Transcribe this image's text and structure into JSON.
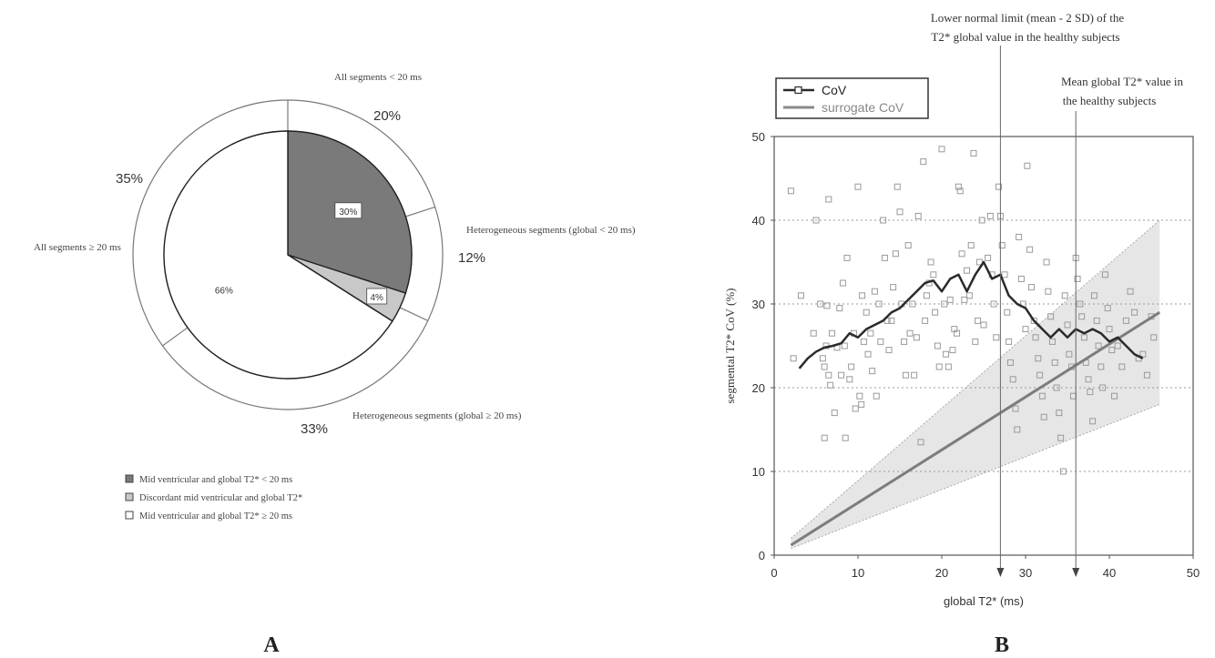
{
  "panel_a": {
    "panel_label": "A",
    "outer_ring_labels": [
      {
        "text": "All segments < 20 ms",
        "percent": "20%"
      },
      {
        "text": "Heterogeneous segments (global < 20 ms)",
        "percent": "12%"
      },
      {
        "text": "Heterogeneous segments (global ≥ 20 ms)",
        "percent": "33%"
      },
      {
        "text": "All segments ≥ 20 ms",
        "percent": "35%"
      }
    ],
    "legend": [
      {
        "label": "Mid ventricular and global T2* < 20 ms",
        "color": "#7a7a7a"
      },
      {
        "label": "Discordant mid ventricular and global T2*",
        "color": "#c8c8c8"
      },
      {
        "label": "Mid ventricular and global T2*  ≥ 20 ms",
        "color": "#ffffff"
      }
    ]
  },
  "panel_b": {
    "panel_label": "B",
    "annotation_lower_line1": "Lower normal limit (mean - 2 SD) of the",
    "annotation_lower_line2": "T2* global value in the healthy subjects",
    "annotation_mean_line1": "Mean global T2* value in",
    "annotation_mean_line2": "the healthy subjects",
    "legend_cov": "CoV",
    "legend_surrogate": "surrogate CoV",
    "xlabel": "global T2* (ms)",
    "ylabel": "segmental T2* CoV (%)"
  },
  "chart_data": [
    {
      "type": "pie",
      "title": "",
      "slices": [
        {
          "label": "Mid ventricular and global T2* < 20 ms",
          "value": 30,
          "value_label": "30%",
          "color": "#7a7a7a"
        },
        {
          "label": "Discordant mid ventricular and global T2*",
          "value": 4,
          "value_label": "4%",
          "color": "#c8c8c8"
        },
        {
          "label": "Mid ventricular and global T2*  ≥ 20 ms",
          "value": 66,
          "value_label": "66%",
          "color": "#ffffff"
        }
      ],
      "outer_ring": [
        {
          "label": "All segments < 20 ms",
          "value": 20,
          "value_label": "20%"
        },
        {
          "label": "Heterogeneous segments (global < 20 ms)",
          "value": 12,
          "value_label": "12%"
        },
        {
          "label": "Heterogeneous segments (global ≥ 20 ms)",
          "value": 33,
          "value_label": "33%"
        },
        {
          "label": "All segments ≥ 20 ms",
          "value": 35,
          "value_label": "35%"
        }
      ]
    },
    {
      "type": "scatter",
      "title": "",
      "xlabel": "global T2* (ms)",
      "ylabel": "segmental T2* CoV (%)",
      "xlim": [
        0,
        50
      ],
      "ylim": [
        0,
        50
      ],
      "xticks": [
        0,
        10,
        20,
        30,
        40,
        50
      ],
      "yticks": [
        0,
        10,
        20,
        30,
        40,
        50
      ],
      "grid": "horizontal-dotted",
      "legend_position": "top-left",
      "vertical_markers": [
        27,
        36
      ],
      "series": [
        {
          "name": "CoV",
          "kind": "line",
          "color": "#2a2a2a",
          "x": [
            3,
            4,
            5,
            6,
            7,
            8,
            9,
            10,
            11,
            12,
            13,
            14,
            15,
            16,
            17,
            18,
            19,
            20,
            21,
            22,
            23,
            24,
            25,
            26,
            27,
            28,
            29,
            30,
            31,
            32,
            33,
            34,
            35,
            36,
            37,
            38,
            39,
            40,
            41,
            42,
            43,
            44
          ],
          "y": [
            22.3,
            23.5,
            24.3,
            24.8,
            25,
            25.3,
            26.5,
            26,
            27,
            27.5,
            28,
            29,
            29.5,
            30.5,
            31.5,
            32.5,
            32.8,
            31.5,
            33,
            33.5,
            31.5,
            33.5,
            35,
            33,
            33.5,
            31,
            30,
            29.5,
            28,
            27,
            26,
            27,
            26,
            27,
            26.5,
            27,
            26.5,
            25.5,
            26,
            25,
            24,
            23.5
          ]
        },
        {
          "name": "surrogate CoV",
          "kind": "line",
          "color": "#7d7d7d",
          "x": [
            2,
            46
          ],
          "y": [
            1.2,
            29
          ]
        },
        {
          "name": "surrogate CoV band",
          "kind": "area",
          "color": "#e6e6e6",
          "x": [
            2,
            46
          ],
          "upper": [
            2,
            40
          ],
          "lower": [
            0.8,
            18
          ]
        },
        {
          "name": "segments",
          "kind": "points",
          "color": "#9a9a9a",
          "points": [
            [
              2,
              43.5
            ],
            [
              2.3,
              23.5
            ],
            [
              3.2,
              31
            ],
            [
              4.7,
              26.5
            ],
            [
              5,
              40
            ],
            [
              5.5,
              30
            ],
            [
              5.8,
              23.5
            ],
            [
              6,
              22.5
            ],
            [
              6.2,
              25
            ],
            [
              6.5,
              42.5
            ],
            [
              6.3,
              29.8
            ],
            [
              6.5,
              21.5
            ],
            [
              6.7,
              20.3
            ],
            [
              6.9,
              26.5
            ],
            [
              7.2,
              17
            ],
            [
              7.5,
              24.8
            ],
            [
              7.8,
              29.5
            ],
            [
              8,
              21.5
            ],
            [
              8.2,
              32.5
            ],
            [
              8.4,
              25
            ],
            [
              8.7,
              35.5
            ],
            [
              9,
              21
            ],
            [
              8.5,
              14
            ],
            [
              6,
              14
            ],
            [
              9.2,
              22.5
            ],
            [
              9.5,
              26.5
            ],
            [
              9.7,
              17.5
            ],
            [
              10,
              44
            ],
            [
              10.2,
              19
            ],
            [
              10.4,
              18
            ],
            [
              10.5,
              31
            ],
            [
              10.7,
              25.5
            ],
            [
              11,
              29
            ],
            [
              11.2,
              24
            ],
            [
              11.5,
              26.5
            ],
            [
              11.7,
              22
            ],
            [
              12,
              31.5
            ],
            [
              12.2,
              19
            ],
            [
              12.5,
              30
            ],
            [
              12.7,
              25.5
            ],
            [
              13,
              40
            ],
            [
              13.2,
              35.5
            ],
            [
              13.5,
              28
            ],
            [
              13.7,
              24.5
            ],
            [
              14,
              28
            ],
            [
              14.2,
              32
            ],
            [
              14.5,
              36
            ],
            [
              14.7,
              44
            ],
            [
              15,
              41
            ],
            [
              15.2,
              30
            ],
            [
              15.5,
              25.5
            ],
            [
              15.7,
              21.5
            ],
            [
              16,
              37
            ],
            [
              16.2,
              26.5
            ],
            [
              16.5,
              30
            ],
            [
              16.7,
              21.5
            ],
            [
              17,
              26
            ],
            [
              17.2,
              40.5
            ],
            [
              17.5,
              13.5
            ],
            [
              17.8,
              47
            ],
            [
              18,
              28
            ],
            [
              18.2,
              31
            ],
            [
              18.5,
              32.5
            ],
            [
              18.7,
              35
            ],
            [
              19,
              33.5
            ],
            [
              19.2,
              29
            ],
            [
              19.5,
              25
            ],
            [
              19.7,
              22.5
            ],
            [
              20,
              48.5
            ],
            [
              20.3,
              30
            ],
            [
              20.5,
              24
            ],
            [
              20.8,
              22.5
            ],
            [
              21,
              30.5
            ],
            [
              21.3,
              24.5
            ],
            [
              21.5,
              27
            ],
            [
              21.8,
              26.5
            ],
            [
              22,
              44
            ],
            [
              22.2,
              43.5
            ],
            [
              22.4,
              36
            ],
            [
              22.7,
              30.5
            ],
            [
              23,
              34
            ],
            [
              23.3,
              31
            ],
            [
              23.5,
              37
            ],
            [
              23.8,
              48
            ],
            [
              24,
              25.5
            ],
            [
              24.3,
              28
            ],
            [
              24.5,
              35
            ],
            [
              24.8,
              40
            ],
            [
              25,
              27.5
            ],
            [
              25.5,
              35.5
            ],
            [
              25.8,
              40.5
            ],
            [
              26,
              33.5
            ],
            [
              26.2,
              30
            ],
            [
              26.5,
              26
            ],
            [
              26.8,
              44
            ],
            [
              27,
              40.5
            ],
            [
              27.2,
              37
            ],
            [
              27.5,
              33.5
            ],
            [
              27.8,
              29
            ],
            [
              28,
              25.5
            ],
            [
              28.2,
              23
            ],
            [
              28.5,
              21
            ],
            [
              28.8,
              17.5
            ],
            [
              29,
              15
            ],
            [
              29.2,
              38
            ],
            [
              29.5,
              33
            ],
            [
              29.7,
              30
            ],
            [
              30,
              27
            ],
            [
              30.2,
              46.5
            ],
            [
              30.5,
              36.5
            ],
            [
              30.7,
              32
            ],
            [
              31,
              28
            ],
            [
              31.2,
              26
            ],
            [
              31.5,
              23.5
            ],
            [
              31.7,
              21.5
            ],
            [
              32,
              19
            ],
            [
              32.2,
              16.5
            ],
            [
              32.5,
              35
            ],
            [
              32.7,
              31.5
            ],
            [
              33,
              28.5
            ],
            [
              33.2,
              25.5
            ],
            [
              33.5,
              23
            ],
            [
              33.7,
              20
            ],
            [
              34,
              17
            ],
            [
              34.2,
              14
            ],
            [
              34.5,
              10
            ],
            [
              34.7,
              31
            ],
            [
              35,
              27.5
            ],
            [
              35.2,
              24
            ],
            [
              35.5,
              22.5
            ],
            [
              35.7,
              19
            ],
            [
              36,
              35.5
            ],
            [
              36.2,
              33
            ],
            [
              36.5,
              30
            ],
            [
              36.7,
              28.5
            ],
            [
              37,
              26
            ],
            [
              37.2,
              23
            ],
            [
              37.5,
              21
            ],
            [
              37.7,
              19.5
            ],
            [
              38,
              16
            ],
            [
              38.2,
              31
            ],
            [
              38.5,
              28
            ],
            [
              38.7,
              25
            ],
            [
              39,
              22.5
            ],
            [
              39.2,
              20
            ],
            [
              39.5,
              33.5
            ],
            [
              39.8,
              29.5
            ],
            [
              40,
              27
            ],
            [
              40.3,
              24.5
            ],
            [
              40.6,
              19
            ],
            [
              41,
              25
            ],
            [
              41.5,
              22.5
            ],
            [
              42,
              28
            ],
            [
              42.5,
              31.5
            ],
            [
              43,
              29
            ],
            [
              43.5,
              23.5
            ],
            [
              44,
              24
            ],
            [
              44.5,
              21.5
            ],
            [
              45,
              28.5
            ],
            [
              45.3,
              26
            ]
          ]
        }
      ]
    }
  ]
}
